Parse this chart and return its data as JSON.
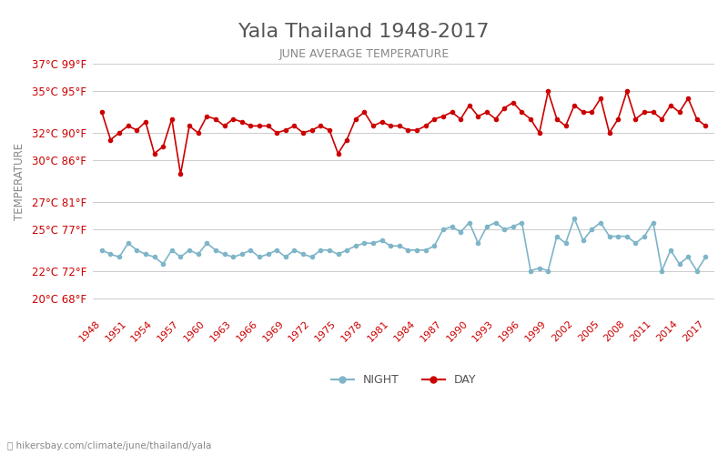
{
  "title": "Yala Thailand 1948-2017",
  "subtitle": "JUNE AVERAGE TEMPERATURE",
  "ylabel": "TEMPERATURE",
  "xlabel_url": "hikersbay.com/climate/june/thailand/yala",
  "years": [
    1948,
    1949,
    1950,
    1951,
    1952,
    1953,
    1954,
    1955,
    1956,
    1957,
    1958,
    1959,
    1960,
    1961,
    1962,
    1963,
    1964,
    1965,
    1966,
    1967,
    1968,
    1969,
    1970,
    1971,
    1972,
    1973,
    1974,
    1975,
    1976,
    1977,
    1978,
    1979,
    1980,
    1981,
    1982,
    1983,
    1984,
    1985,
    1986,
    1987,
    1988,
    1989,
    1990,
    1991,
    1992,
    1993,
    1994,
    1995,
    1996,
    1997,
    1998,
    1999,
    2000,
    2001,
    2002,
    2003,
    2004,
    2005,
    2006,
    2007,
    2008,
    2009,
    2010,
    2011,
    2012,
    2013,
    2014,
    2015,
    2016,
    2017
  ],
  "day_temps": [
    33.5,
    31.5,
    32.0,
    32.5,
    32.2,
    32.8,
    30.5,
    31.0,
    33.0,
    29.0,
    32.5,
    32.0,
    33.2,
    33.0,
    32.5,
    33.0,
    32.8,
    32.5,
    32.5,
    32.5,
    32.0,
    32.2,
    32.5,
    32.0,
    32.2,
    32.5,
    32.2,
    30.5,
    31.5,
    33.0,
    33.5,
    32.5,
    32.8,
    32.5,
    32.5,
    32.2,
    32.2,
    32.5,
    33.0,
    33.2,
    33.5,
    33.0,
    34.0,
    33.2,
    33.5,
    33.0,
    33.8,
    34.2,
    33.5,
    33.0,
    32.0,
    35.0,
    33.0,
    32.5,
    34.0,
    33.5,
    33.5,
    34.5,
    32.0,
    33.0,
    35.0,
    33.0,
    33.5,
    33.5,
    33.0,
    34.0,
    33.5,
    34.5,
    33.0,
    32.5
  ],
  "night_temps": [
    23.5,
    23.2,
    23.0,
    24.0,
    23.5,
    23.2,
    23.0,
    22.5,
    23.5,
    23.0,
    23.5,
    23.2,
    24.0,
    23.5,
    23.2,
    23.0,
    23.2,
    23.5,
    23.0,
    23.2,
    23.5,
    23.0,
    23.5,
    23.2,
    23.0,
    23.5,
    23.5,
    23.2,
    23.5,
    23.8,
    24.0,
    24.0,
    24.2,
    23.8,
    23.8,
    23.5,
    23.5,
    23.5,
    23.8,
    25.0,
    25.2,
    24.8,
    25.5,
    24.0,
    25.2,
    25.5,
    25.0,
    25.2,
    25.5,
    22.0,
    22.2,
    22.0,
    24.5,
    24.0,
    25.8,
    24.2,
    25.0,
    25.5,
    24.5,
    24.5,
    24.5,
    24.0,
    24.5,
    25.5,
    22.0,
    23.5,
    22.5,
    23.0,
    22.0,
    23.0
  ],
  "day_color": "#cc0000",
  "night_color": "#7eb5c8",
  "background_color": "#ffffff",
  "grid_color": "#cccccc",
  "title_color": "#555555",
  "subtitle_color": "#888888",
  "ylabel_color": "#888888",
  "tick_color": "#cc0000",
  "yticks_c": [
    20,
    22,
    25,
    27,
    30,
    32,
    35,
    37
  ],
  "yticks_f": [
    68,
    72,
    77,
    81,
    86,
    90,
    95,
    99
  ],
  "ylim": [
    19,
    38
  ],
  "xlim": [
    1947,
    2018
  ]
}
